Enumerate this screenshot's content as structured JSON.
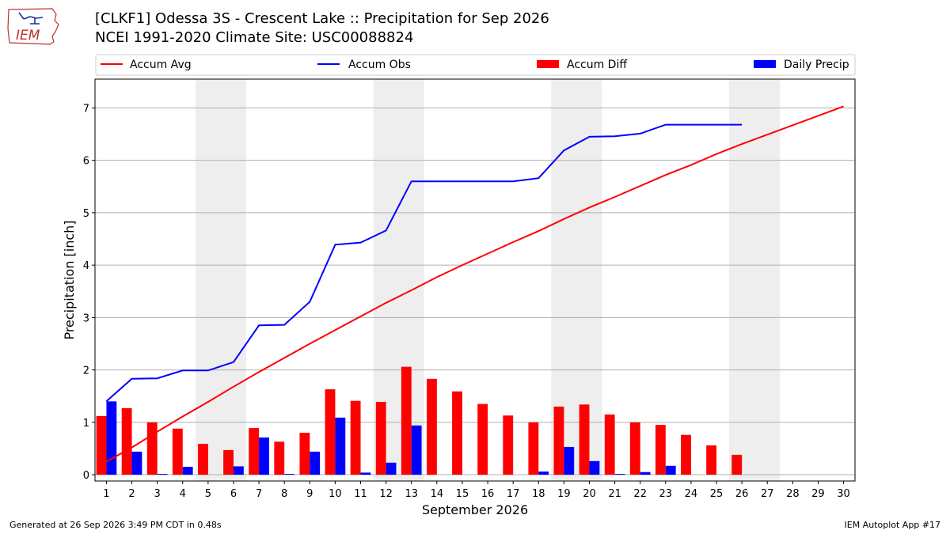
{
  "header": {
    "title_line1": "[CLKF1] Odessa 3S - Crescent Lake :: Precipitation for Sep 2026",
    "title_line2": "NCEI 1991-2020 Climate Site: USC00088824",
    "logo_text": "IEM"
  },
  "footer": {
    "left": "Generated at 26 Sep 2026 3:49 PM CDT in 0.48s",
    "right": "IEM Autoplot App #17"
  },
  "colors": {
    "avg": "#ff0000",
    "obs": "#0000ff",
    "diff": "#ff0000",
    "daily": "#0000ff",
    "weekend_shade": "#eeeeee",
    "grid": "#b0b0b0"
  },
  "chart_data": {
    "type": "bar",
    "xlabel": "September 2026",
    "ylabel": "Precipitation [inch]",
    "ylim": [
      -0.12,
      7.55
    ],
    "yticks": [
      0,
      1,
      2,
      3,
      4,
      5,
      6,
      7
    ],
    "grid": true,
    "legend_placement": "top",
    "days": [
      1,
      2,
      3,
      4,
      5,
      6,
      7,
      8,
      9,
      10,
      11,
      12,
      13,
      14,
      15,
      16,
      17,
      18,
      19,
      20,
      21,
      22,
      23,
      24,
      25,
      26,
      27,
      28,
      29,
      30
    ],
    "weekend_spans": [
      [
        5,
        6
      ],
      [
        12,
        13
      ],
      [
        19,
        20
      ],
      [
        26,
        27
      ]
    ],
    "series": [
      {
        "name": "Accum Avg",
        "kind": "line",
        "values": [
          0.25,
          0.52,
          0.82,
          1.11,
          1.39,
          1.68,
          1.96,
          2.23,
          2.5,
          2.76,
          3.02,
          3.28,
          3.52,
          3.77,
          4.0,
          4.22,
          4.44,
          4.65,
          4.88,
          5.1,
          5.3,
          5.51,
          5.72,
          5.91,
          6.12,
          6.31,
          6.49,
          6.67,
          6.85,
          7.03
        ]
      },
      {
        "name": "Accum Obs",
        "kind": "line",
        "values": [
          1.4,
          1.83,
          1.84,
          1.99,
          1.99,
          2.15,
          2.85,
          2.86,
          3.3,
          4.39,
          4.43,
          4.66,
          5.6,
          5.6,
          5.6,
          5.6,
          5.6,
          5.66,
          6.19,
          6.45,
          6.46,
          6.51,
          6.68,
          6.68,
          6.68,
          6.68
        ]
      },
      {
        "name": "Accum Diff",
        "kind": "bar",
        "values": [
          1.12,
          1.27,
          1.0,
          0.88,
          0.59,
          0.47,
          0.89,
          0.63,
          0.8,
          1.63,
          1.41,
          1.39,
          2.06,
          1.83,
          1.59,
          1.35,
          1.13,
          1.0,
          1.3,
          1.34,
          1.15,
          1.0,
          0.95,
          0.76,
          0.56,
          0.38
        ]
      },
      {
        "name": "Daily Precip",
        "kind": "bar",
        "values": [
          1.4,
          0.44,
          0.01,
          0.15,
          0.0,
          0.16,
          0.71,
          0.01,
          0.44,
          1.09,
          0.04,
          0.23,
          0.94,
          0.0,
          0.0,
          0.0,
          0.0,
          0.06,
          0.53,
          0.26,
          0.01,
          0.05,
          0.17,
          0.0,
          0.0,
          0.0
        ]
      }
    ]
  }
}
